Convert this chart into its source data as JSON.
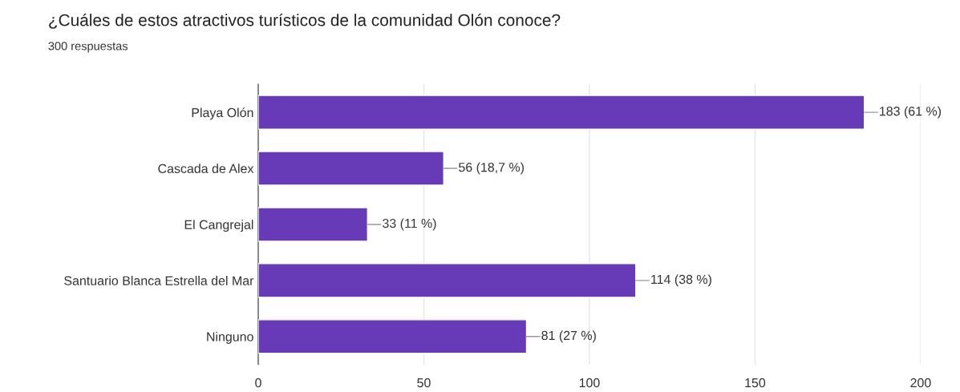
{
  "chart_data": {
    "type": "bar",
    "orientation": "horizontal",
    "title": "¿Cuáles de estos atractivos turísticos de la comunidad Olón conoce?",
    "subtitle": "300 respuestas",
    "categories": [
      "Playa Olón",
      "Cascada de Alex",
      "El Cangrejal",
      "Santuario Blanca Estrella del Mar",
      "Ninguno"
    ],
    "values": [
      183,
      56,
      33,
      114,
      81
    ],
    "color": "#673ab7",
    "value_labels": [
      "183 (61 %)",
      "56 (18,7 %)",
      "33 (11 %)",
      "114 (38 %)",
      "81 (27 %)"
    ],
    "xlim": [
      0,
      200
    ],
    "xticks": [
      0,
      50,
      100,
      150,
      200
    ],
    "grid": "x"
  }
}
